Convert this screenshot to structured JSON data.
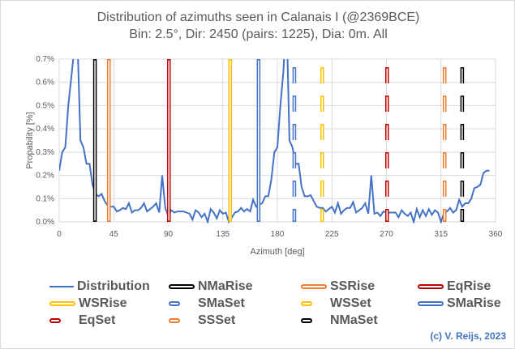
{
  "chart_data": {
    "type": "line",
    "title": "Distribution of azimuths seen in  Calanais I (@2369BCE)",
    "subtitle": "Bin: 2.5°, Dir: 2450 (pairs: 1225), Dia: 0m. All",
    "xlabel": "Azimuth [deg]",
    "ylabel": "Propability [%]",
    "xlim": [
      0,
      360
    ],
    "ylim": [
      0,
      0.7
    ],
    "xticks": [
      "0",
      "45",
      "90",
      "135",
      "180",
      "225",
      "270",
      "315",
      "360"
    ],
    "yticks": [
      "0.0%",
      "0.1%",
      "0.2%",
      "0.3%",
      "0.4%",
      "0.5%",
      "0.6%",
      "0.7%"
    ],
    "grid": true,
    "legend_position": "bottom",
    "series": [
      {
        "name": "Distribution",
        "color": "#4472c4",
        "style": "line",
        "x_step": 2.5,
        "values": [
          0.22,
          0.3,
          0.32,
          0.5,
          0.62,
          0.75,
          0.8,
          0.35,
          0.32,
          0.25,
          0.25,
          0.16,
          0.12,
          0.11,
          0.12,
          0.09,
          0.07,
          0.065,
          0.065,
          0.045,
          0.05,
          0.06,
          0.055,
          0.08,
          0.04,
          0.05,
          0.05,
          0.06,
          0.08,
          0.045,
          0.055,
          0.065,
          0.08,
          0.04,
          0.2,
          0.06,
          0.025,
          0.05,
          0.04,
          0.045,
          0.045,
          0.045,
          0.04,
          0.035,
          0.01,
          0.05,
          0.04,
          0.02,
          0.035,
          0.0,
          0.055,
          0.04,
          0.015,
          0.05,
          0.035,
          0.04,
          0.0,
          0.02,
          0.04,
          0.045,
          0.06,
          0.045,
          0.055,
          0.045,
          0.095,
          0.065,
          0.075,
          0.08,
          0.11,
          0.11,
          0.18,
          0.3,
          0.32,
          0.5,
          0.65,
          0.9,
          0.35,
          0.32,
          0.25,
          0.25,
          0.15,
          0.11,
          0.11,
          0.115,
          0.09,
          0.065,
          0.06,
          0.06,
          0.045,
          0.055,
          0.065,
          0.04,
          0.08,
          0.035,
          0.05,
          0.06,
          0.06,
          0.085,
          0.04,
          0.05,
          0.06,
          0.08,
          0.035,
          0.2,
          0.035,
          0.04,
          0.025,
          0.045,
          0.04,
          0.04,
          0.04,
          0.04,
          0.02,
          0.05,
          0.035,
          0.025,
          0.04,
          0.0,
          0.055,
          0.02,
          0.05,
          0.025,
          0.055,
          0.03,
          0.05,
          0.04,
          0.0,
          0.04,
          0.045,
          0.06,
          0.04,
          0.05,
          0.095,
          0.065,
          0.08,
          0.08,
          0.1,
          0.145,
          0.15,
          0.16,
          0.21,
          0.22,
          0.22
        ]
      },
      {
        "name": "NMaRise",
        "color": "#000000",
        "style": "solid",
        "azimuth": 29.5
      },
      {
        "name": "SSRise",
        "color": "#ed7d31",
        "style": "solid",
        "azimuth": 41
      },
      {
        "name": "EqRise",
        "color": "#c00000",
        "style": "solid",
        "azimuth": 90.5
      },
      {
        "name": "WSRise",
        "color": "#ffc000",
        "style": "solid",
        "azimuth": 141
      },
      {
        "name": "SMaSet",
        "color": "#4472c4",
        "style": "dashed",
        "azimuth": 194
      },
      {
        "name": "WSSet",
        "color": "#ffc000",
        "style": "dashed",
        "azimuth": 217
      },
      {
        "name": "SMaRise",
        "color": "#4472c4",
        "style": "solid",
        "azimuth": 164.5
      },
      {
        "name": "EqSet",
        "color": "#c00000",
        "style": "dashed",
        "azimuth": 270.5
      },
      {
        "name": "SSSet",
        "color": "#ed7d31",
        "style": "dashed",
        "azimuth": 318
      },
      {
        "name": "NMaSet",
        "color": "#000000",
        "style": "dashed",
        "azimuth": 332.5
      }
    ]
  },
  "credit": "(c) V. Reijs, 2023"
}
